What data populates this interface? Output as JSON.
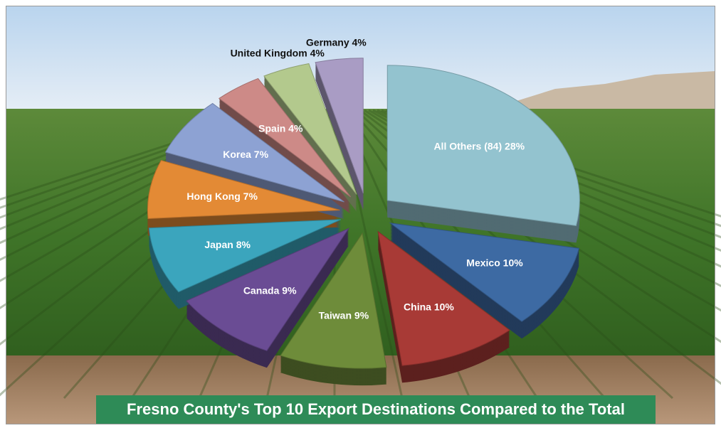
{
  "chart_data": {
    "type": "pie3d",
    "title": "Fresno County's Top 10 Export Destinations Compared to the Total",
    "categories": [
      "All Others (84)",
      "Mexico",
      "China",
      "Taiwan",
      "Canada",
      "Japan",
      "Hong Kong",
      "Korea",
      "Spain",
      "United Kingdom",
      "Germany"
    ],
    "values": [
      28,
      10,
      10,
      9,
      9,
      8,
      7,
      7,
      4,
      4,
      4
    ],
    "value_labels": [
      "28%",
      "10%",
      "10%",
      "9%",
      "9%",
      "8%",
      "7%",
      "7%",
      "4%",
      "4%",
      "4%"
    ],
    "colors": [
      "#93c3cf",
      "#3d6aa3",
      "#a83a36",
      "#6e8c3a",
      "#6a4c94",
      "#3ba5bd",
      "#e38a35",
      "#8da2d3",
      "#cd8a87",
      "#b3c98d",
      "#a99cc4"
    ]
  }
}
